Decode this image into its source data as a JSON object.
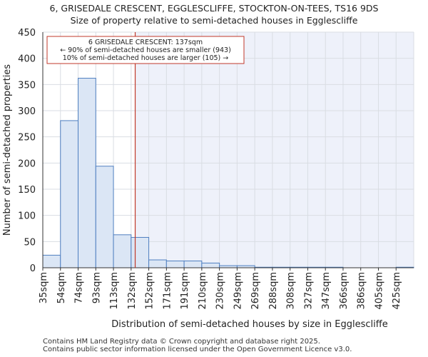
{
  "chart_data": {
    "type": "bar",
    "title": "6, GRISEDALE CRESCENT, EGGLESCLIFFE, STOCKTON-ON-TEES, TS16 9DS",
    "subtitle": "Size of property relative to semi-detached houses in Egglescliffe",
    "xlabel": "Distribution of semi-detached houses by size in Egglescliffe",
    "ylabel": "Number of semi-detached properties",
    "categories": [
      "35sqm",
      "54sqm",
      "74sqm",
      "93sqm",
      "113sqm",
      "132sqm",
      "152sqm",
      "171sqm",
      "191sqm",
      "210sqm",
      "230sqm",
      "249sqm",
      "269sqm",
      "288sqm",
      "308sqm",
      "327sqm",
      "347sqm",
      "366sqm",
      "386sqm",
      "405sqm",
      "425sqm"
    ],
    "values": [
      24,
      281,
      362,
      194,
      63,
      58,
      15,
      13,
      13,
      9,
      4,
      4,
      1,
      1,
      1,
      1,
      1,
      0,
      0,
      0,
      1
    ],
    "ylim": [
      0,
      450
    ],
    "yticks": [
      0,
      50,
      100,
      150,
      200,
      250,
      300,
      350,
      400,
      450
    ],
    "marker_value": 137,
    "marker_unit": "sqm",
    "annotation": {
      "line1": "6 GRISEDALE CRESCENT: 137sqm",
      "line2": "← 90% of semi-detached houses are smaller (943)",
      "line3": "10% of semi-detached houses are larger (105) →"
    },
    "colors": {
      "bar_fill": "#dbe6f5",
      "bar_edge": "#4f7fc0",
      "marker": "#c0392b",
      "grid": "#d9dde3",
      "plot_bg_right": "#eef1fa"
    }
  },
  "footer": {
    "line1": "Contains HM Land Registry data © Crown copyright and database right 2025.",
    "line2": "Contains public sector information licensed under the Open Government Licence v3.0."
  }
}
